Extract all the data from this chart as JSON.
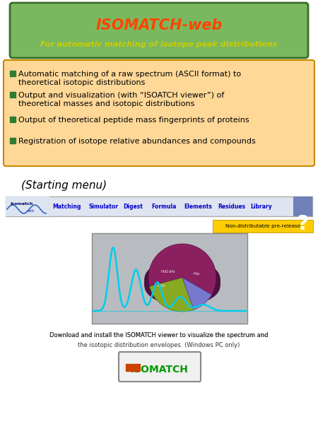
{
  "title_text": "ISOMATCH-web",
  "subtitle_text": "For automatic matching of isotope peak distributions",
  "title_color": "#ff4500",
  "subtitle_color": "#cccc00",
  "header_bg_top": "#8aba70",
  "header_bg_bot": "#4a8a30",
  "header_border_color": "#3a6e28",
  "bullet_color": "#2e7d32",
  "bullet_box_bg": "#ffd898",
  "bullet_box_border": "#cc8800",
  "bullets": [
    "Automatic matching of a raw spectrum (ASCII format) to\ntheoretical isotopic distributions",
    "Output and visualization (with “ISOATCH viewer”) of\ntheoretical masses and isotopic distributions",
    "Output of theoretical peptide mass fingerprints of proteins",
    "Registration of isotope relative abundances and compounds"
  ],
  "starting_menu_text": "(Starting menu)",
  "nav_items": [
    "Matching",
    "Simulator",
    "Digest",
    "Formula",
    "Elements",
    "Residues",
    "Library"
  ],
  "nav_color": "#0000cc",
  "non_dist_text": "Non-distributable pre-release",
  "non_dist_bg": "#ffcc00",
  "download_line1": "Download and install the ",
  "download_link": "ISOMATCH viewer",
  "download_line1b": " to visualize the spectrum and",
  "download_line2": "the isotopic distribution envelopes. (Windows PC only)",
  "bg_color": "#ffffff"
}
